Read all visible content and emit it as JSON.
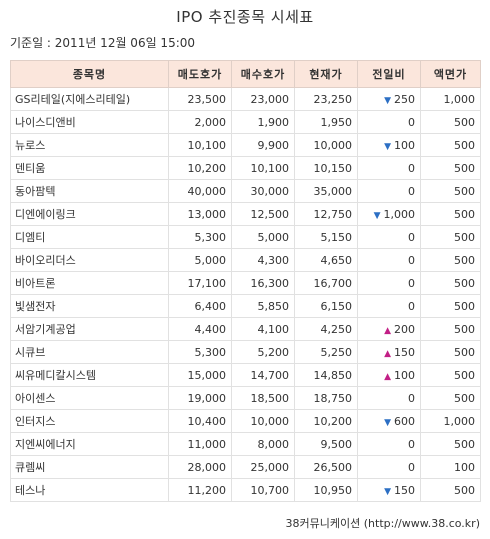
{
  "title": "IPO 추진종목 시세표",
  "base_date": "기준일 : 2011년 12월 06일 15:00",
  "columns": [
    "종목명",
    "매도호가",
    "매수호가",
    "현재가",
    "전일비",
    "액면가"
  ],
  "rows": [
    {
      "name": "GS리테일(지에스리테일)",
      "ask": "23,500",
      "bid": "23,000",
      "price": "23,250",
      "dir": "down",
      "arrow": "▼",
      "change": "250",
      "par": "1,000"
    },
    {
      "name": "나이스디앤비",
      "ask": "2,000",
      "bid": "1,900",
      "price": "1,950",
      "dir": "none",
      "arrow": "",
      "change": "0",
      "par": "500"
    },
    {
      "name": "뉴로스",
      "ask": "10,100",
      "bid": "9,900",
      "price": "10,000",
      "dir": "down",
      "arrow": "▼",
      "change": "100",
      "par": "500"
    },
    {
      "name": "덴티움",
      "ask": "10,200",
      "bid": "10,100",
      "price": "10,150",
      "dir": "none",
      "arrow": "",
      "change": "0",
      "par": "500"
    },
    {
      "name": "동아팜텍",
      "ask": "40,000",
      "bid": "30,000",
      "price": "35,000",
      "dir": "none",
      "arrow": "",
      "change": "0",
      "par": "500"
    },
    {
      "name": "디엔에이링크",
      "ask": "13,000",
      "bid": "12,500",
      "price": "12,750",
      "dir": "down",
      "arrow": "▼",
      "change": "1,000",
      "par": "500"
    },
    {
      "name": "디엠티",
      "ask": "5,300",
      "bid": "5,000",
      "price": "5,150",
      "dir": "none",
      "arrow": "",
      "change": "0",
      "par": "500"
    },
    {
      "name": "바이오리더스",
      "ask": "5,000",
      "bid": "4,300",
      "price": "4,650",
      "dir": "none",
      "arrow": "",
      "change": "0",
      "par": "500"
    },
    {
      "name": "비아트론",
      "ask": "17,100",
      "bid": "16,300",
      "price": "16,700",
      "dir": "none",
      "arrow": "",
      "change": "0",
      "par": "500"
    },
    {
      "name": "빛샘전자",
      "ask": "6,400",
      "bid": "5,850",
      "price": "6,150",
      "dir": "none",
      "arrow": "",
      "change": "0",
      "par": "500"
    },
    {
      "name": "서암기계공업",
      "ask": "4,400",
      "bid": "4,100",
      "price": "4,250",
      "dir": "up",
      "arrow": "▲",
      "change": "200",
      "par": "500"
    },
    {
      "name": "시큐브",
      "ask": "5,300",
      "bid": "5,200",
      "price": "5,250",
      "dir": "up",
      "arrow": "▲",
      "change": "150",
      "par": "500"
    },
    {
      "name": "씨유메디칼시스템",
      "ask": "15,000",
      "bid": "14,700",
      "price": "14,850",
      "dir": "up",
      "arrow": "▲",
      "change": "100",
      "par": "500"
    },
    {
      "name": "아이센스",
      "ask": "19,000",
      "bid": "18,500",
      "price": "18,750",
      "dir": "none",
      "arrow": "",
      "change": "0",
      "par": "500"
    },
    {
      "name": "인터지스",
      "ask": "10,400",
      "bid": "10,000",
      "price": "10,200",
      "dir": "down",
      "arrow": "▼",
      "change": "600",
      "par": "1,000"
    },
    {
      "name": "지엔씨에너지",
      "ask": "11,000",
      "bid": "8,000",
      "price": "9,500",
      "dir": "none",
      "arrow": "",
      "change": "0",
      "par": "500"
    },
    {
      "name": "큐렘씨",
      "ask": "28,000",
      "bid": "25,000",
      "price": "26,500",
      "dir": "none",
      "arrow": "",
      "change": "0",
      "par": "100"
    },
    {
      "name": "테스나",
      "ask": "11,200",
      "bid": "10,700",
      "price": "10,950",
      "dir": "down",
      "arrow": "▼",
      "change": "150",
      "par": "500"
    }
  ],
  "footer": "38커뮤니케이션 (http://www.38.co.kr)",
  "colors": {
    "header_bg": "#fbe6dc",
    "down": "#2c6fc4",
    "up": "#c21f86"
  }
}
